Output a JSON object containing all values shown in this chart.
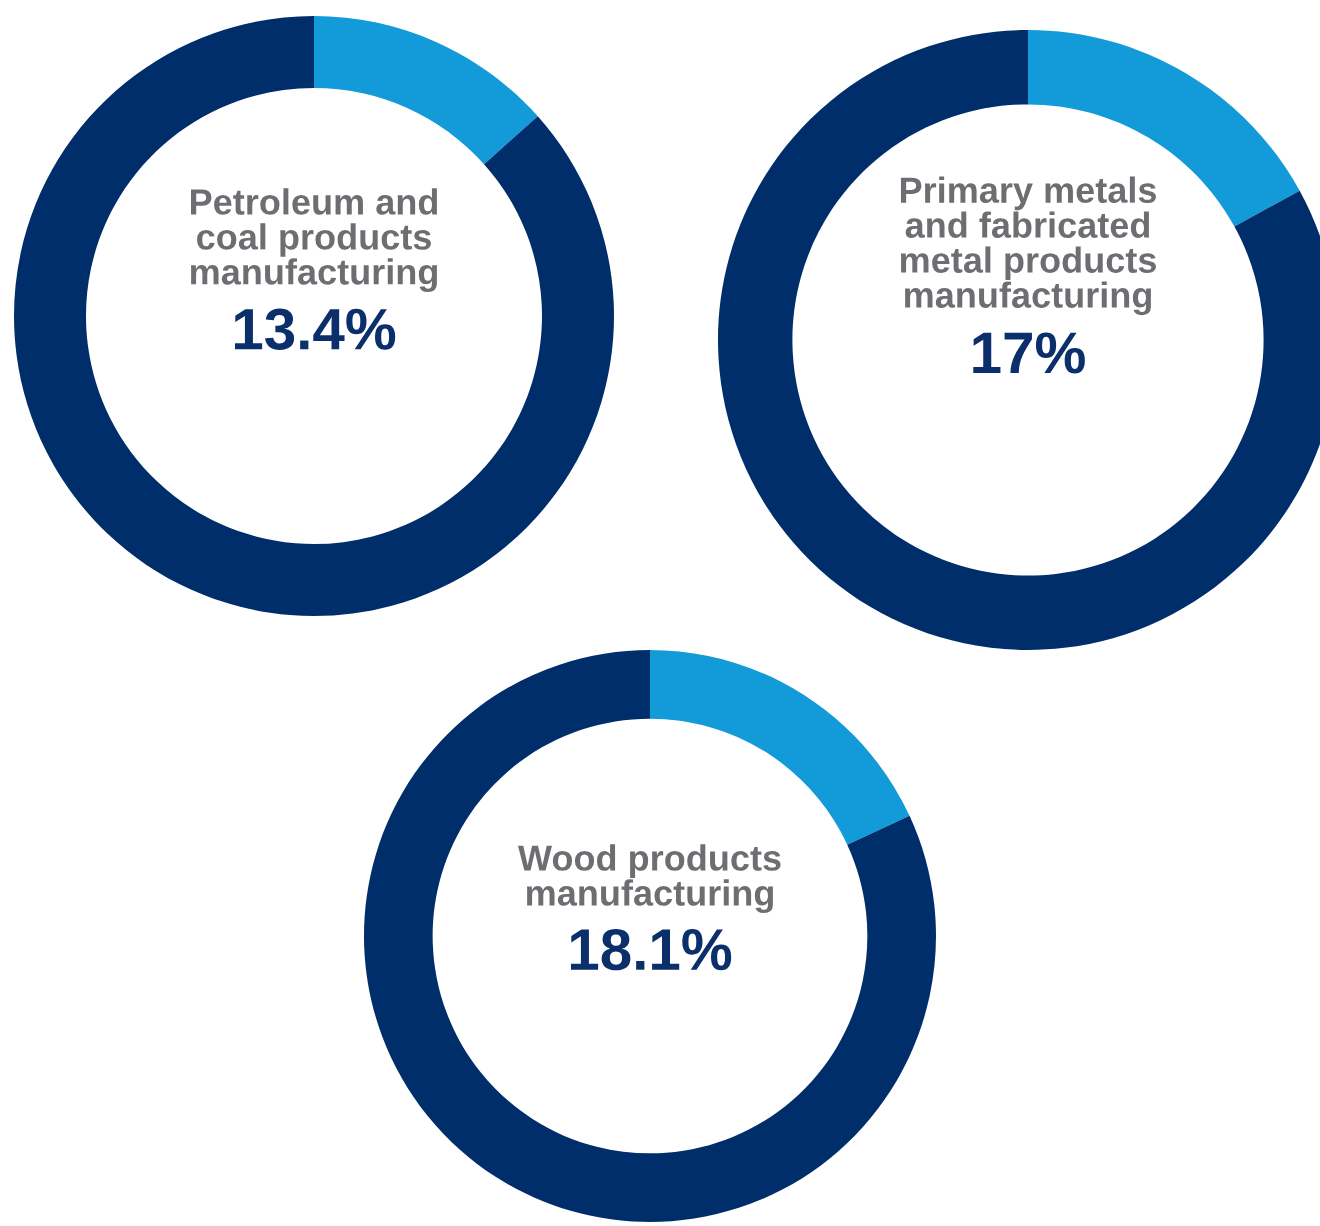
{
  "chart_data": [
    {
      "type": "donut",
      "title": "Petroleum and\ncoal products\nmanufacturing",
      "annotations": [
        "13.4%"
      ],
      "categories": [
        null,
        null
      ],
      "values": [
        13.4,
        86.6
      ],
      "colors": [
        "#139ad8",
        "#002e6b"
      ]
    },
    {
      "type": "donut",
      "title": "Primary metals\nand fabricated\nmetal products\nmanufacturing",
      "annotations": [
        "17%"
      ],
      "categories": [
        null,
        null
      ],
      "values": [
        17,
        83
      ],
      "colors": [
        "#139ad8",
        "#002e6b"
      ]
    },
    {
      "type": "donut",
      "title": "Wood products\nmanufacturing",
      "annotations": [
        "18.1%"
      ],
      "categories": [
        null,
        null
      ],
      "values": [
        18.1,
        81.9
      ],
      "colors": [
        "#139ad8",
        "#002e6b"
      ]
    }
  ]
}
